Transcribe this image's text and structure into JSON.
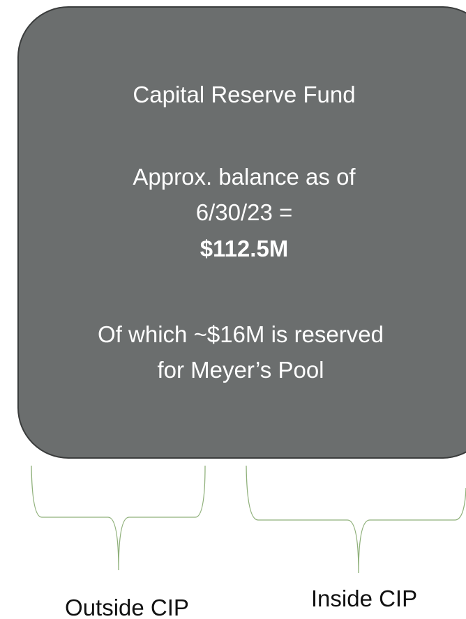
{
  "box": {
    "lines": [
      "Capital Reserve Fund",
      "Approx. balance as of",
      "6/30/23 =",
      "$112.5M",
      "Of which ~$16M is reserved",
      "for Meyer’s Pool"
    ]
  },
  "braces": [
    {
      "label": "Outside CIP"
    },
    {
      "label": "Inside CIP"
    }
  ]
}
